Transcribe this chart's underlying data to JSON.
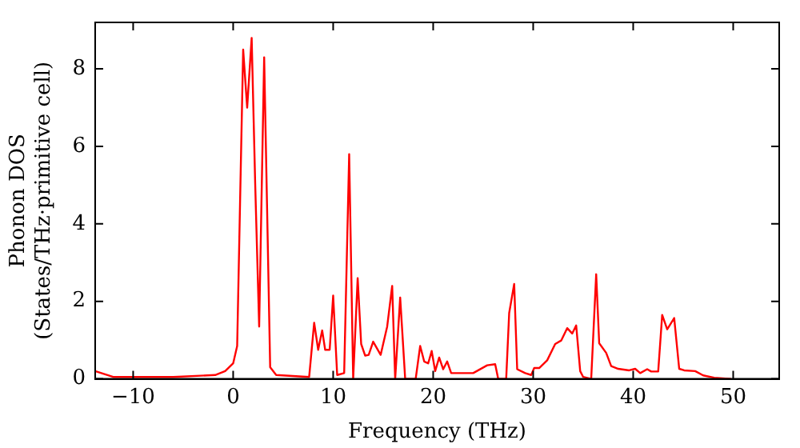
{
  "chart_data": {
    "type": "line",
    "xlabel": "Frequency (THz)",
    "ylabel": "Phonon DOS\n(States/THz·primitive cell)",
    "xlim": [
      -13.8,
      54.6
    ],
    "ylim": [
      0,
      9.2
    ],
    "xticks": [
      -10,
      0,
      10,
      20,
      30,
      40,
      50
    ],
    "yticks": [
      0,
      2,
      4,
      6,
      8
    ],
    "grid": false,
    "legend": false,
    "marker": "none",
    "line_style": "solid",
    "series": [
      {
        "color": "#ff0000",
        "x": [
          -13.8,
          -12,
          -6,
          -1.8,
          -0.8,
          0,
          0.4,
          1.0,
          1.4,
          1.85,
          2.2,
          2.6,
          3.1,
          3.7,
          4.3,
          7.6,
          8.1,
          8.5,
          8.9,
          9.2,
          9.65,
          10.0,
          10.4,
          11.1,
          11.6,
          12.0,
          12.45,
          12.8,
          13.2,
          13.55,
          14.0,
          14.75,
          15.4,
          15.9,
          16.2,
          16.7,
          17.2,
          18.25,
          18.7,
          19.1,
          19.5,
          19.85,
          20.2,
          20.6,
          21.0,
          21.4,
          21.8,
          24.0,
          25.4,
          26.2,
          26.5,
          27.3,
          27.6,
          28.1,
          28.4,
          29.2,
          29.8,
          30.1,
          30.6,
          31.4,
          32.2,
          32.8,
          33.4,
          33.9,
          34.3,
          34.7,
          35.0,
          35.8,
          36.3,
          36.6,
          37.3,
          37.8,
          38.5,
          39.6,
          40.2,
          40.7,
          41.4,
          41.8,
          42.5,
          42.9,
          43.4,
          44.1,
          44.6,
          45.1,
          46.2,
          47.0,
          48.1,
          49.8
        ],
        "values": [
          0.2,
          0.05,
          0.05,
          0.1,
          0.2,
          0.4,
          0.85,
          8.5,
          7.0,
          8.8,
          5.06,
          1.35,
          8.3,
          0.3,
          0.1,
          0.05,
          1.45,
          0.75,
          1.25,
          0.75,
          0.75,
          2.15,
          0.1,
          0.15,
          5.8,
          0,
          2.6,
          0.9,
          0.6,
          0.62,
          0.96,
          0.62,
          1.35,
          2.4,
          0,
          2.1,
          0,
          0,
          0.85,
          0.45,
          0.4,
          0.72,
          0.2,
          0.55,
          0.25,
          0.45,
          0.15,
          0.15,
          0.35,
          0.38,
          0,
          0,
          1.7,
          2.45,
          0.25,
          0.15,
          0.1,
          0.28,
          0.28,
          0.48,
          0.9,
          0.99,
          1.31,
          1.17,
          1.38,
          0.2,
          0.05,
          0,
          2.7,
          0.92,
          0.67,
          0.33,
          0.26,
          0.22,
          0.26,
          0.15,
          0.25,
          0.19,
          0.19,
          1.65,
          1.28,
          1.57,
          0.26,
          0.22,
          0.2,
          0.09,
          0.03,
          0
        ]
      }
    ]
  }
}
